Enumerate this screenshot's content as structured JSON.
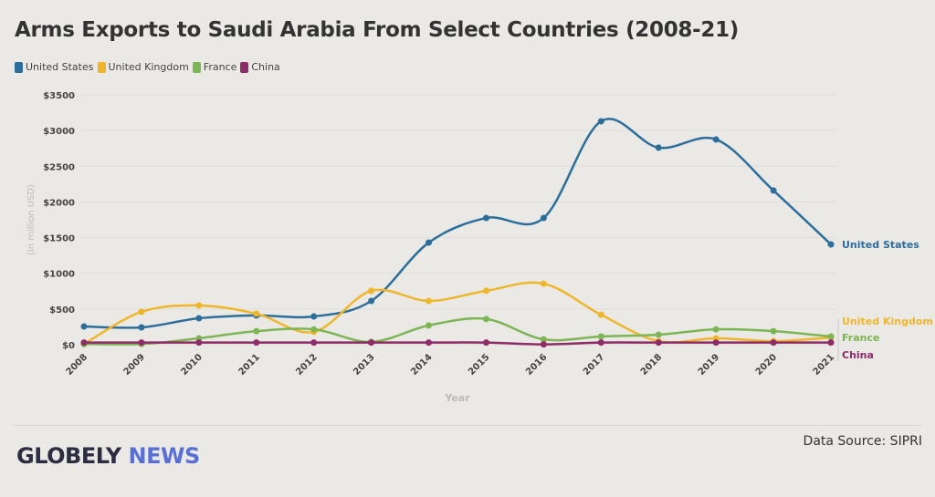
{
  "chart_data": {
    "type": "line",
    "title": "Arms Exports to Saudi Arabia From Select Countries (2008-21)",
    "xlabel": "Year",
    "ylabel": "(in million USD)",
    "x": [
      "2008",
      "2009",
      "2010",
      "2011",
      "2012",
      "2013",
      "2014",
      "2015",
      "2016",
      "2017",
      "2018",
      "2019",
      "2020",
      "2021"
    ],
    "yticks": [
      "$0",
      "$500",
      "$1000",
      "$1500",
      "$2000",
      "$2500",
      "$3000",
      "$3500"
    ],
    "ylim": [
      0,
      3500
    ],
    "grid": true,
    "legend": "top-left",
    "series": [
      {
        "name": "United States",
        "color": "#2c6e9b",
        "values": [
          255,
          243,
          370,
          410,
          396,
          613,
          1430,
          1775,
          1775,
          3130,
          2760,
          2875,
          2160,
          1405
        ]
      },
      {
        "name": "United Kingdom",
        "color": "#f0b62a",
        "values": [
          10,
          460,
          550,
          435,
          180,
          755,
          613,
          755,
          855,
          420,
          50,
          90,
          50,
          100
        ]
      },
      {
        "name": "France",
        "color": "#7cb553",
        "values": [
          10,
          10,
          90,
          190,
          215,
          40,
          270,
          360,
          75,
          115,
          140,
          215,
          190,
          115
        ]
      },
      {
        "name": "China",
        "color": "#8e2b69",
        "values": [
          30,
          30,
          30,
          30,
          30,
          30,
          30,
          30,
          5,
          30,
          30,
          30,
          30,
          30
        ]
      }
    ]
  },
  "footer": {
    "logo_a": "GLOBELY ",
    "logo_b": "NEWS",
    "source": "Data Source: SIPRI"
  }
}
